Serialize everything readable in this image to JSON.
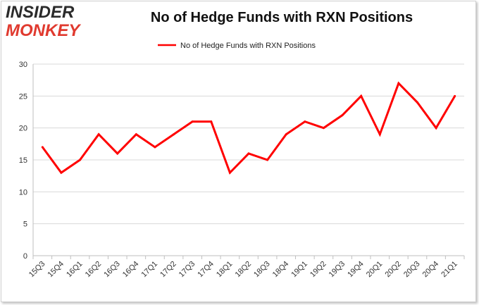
{
  "logo": {
    "line1": "INSIDER",
    "line2": "MONKEY"
  },
  "colors": {
    "series": "#ff0000",
    "grid": "#d9d9d9",
    "logo_dark": "#2b2b2b",
    "logo_red": "#e03a2f"
  },
  "chart_data": {
    "type": "line",
    "title": "No of Hedge Funds with RXN Positions",
    "xlabel": "",
    "ylabel": "",
    "ylim": [
      0,
      30
    ],
    "yticks": [
      0,
      5,
      10,
      15,
      20,
      25,
      30
    ],
    "grid": true,
    "legend_position": "top-center",
    "categories": [
      "15Q3",
      "15Q4",
      "16Q1",
      "16Q2",
      "16Q3",
      "16Q4",
      "17Q1",
      "17Q2",
      "17Q3",
      "17Q4",
      "18Q1",
      "18Q2",
      "18Q3",
      "18Q4",
      "19Q1",
      "19Q2",
      "19Q3",
      "19Q4",
      "20Q1",
      "20Q2",
      "20Q3",
      "20Q4",
      "21Q1"
    ],
    "series": [
      {
        "name": "No of Hedge Funds with RXN Positions",
        "values": [
          17,
          13,
          15,
          19,
          16,
          19,
          17,
          19,
          21,
          21,
          13,
          16,
          15,
          19,
          21,
          20,
          22,
          25,
          19,
          27,
          24,
          20,
          25
        ]
      }
    ]
  }
}
